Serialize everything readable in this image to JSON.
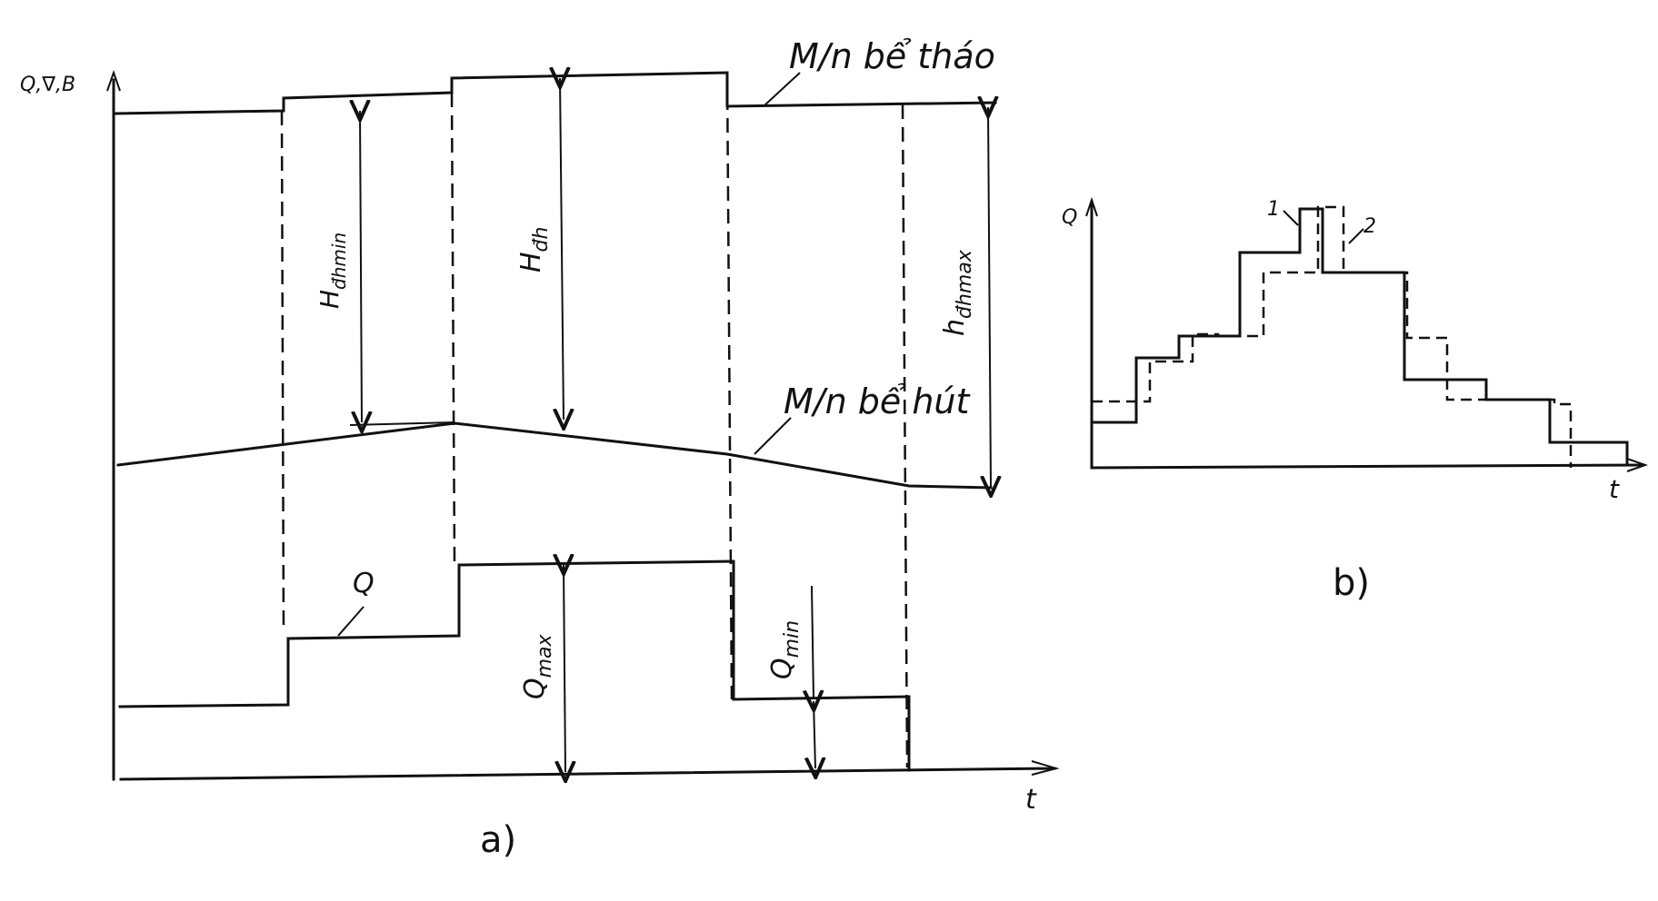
{
  "diagram_a": {
    "axis_y_label": "Q,∇,B",
    "axis_x_label": "t",
    "discharge_level_label": "M/n bể tháo",
    "suction_level_label": "M/n bể hút",
    "flow_label": "Q",
    "h_min_label": "H",
    "h_min_sub": "đhmin",
    "h_th_label": "H",
    "h_th_sub": "đh",
    "h_max_label": "h",
    "h_max_sub": "đhmax",
    "q_max_label": "Q",
    "q_max_sub": "max",
    "q_min_label": "Q",
    "q_min_sub": "min",
    "caption": "a)"
  },
  "diagram_b": {
    "axis_y_label": "Q",
    "axis_x_label": "t",
    "curve1_label": "1",
    "curve2_label": "2",
    "caption": "b)"
  }
}
